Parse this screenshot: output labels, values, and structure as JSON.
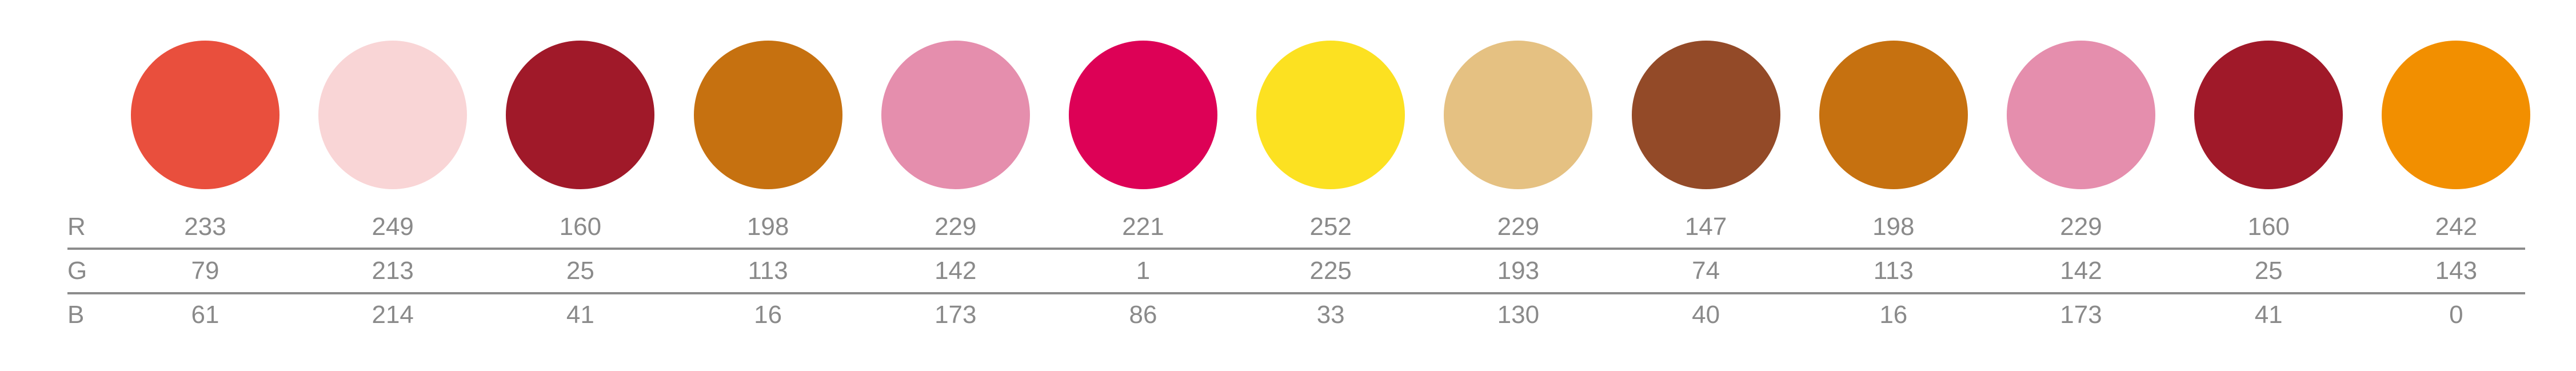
{
  "rows": {
    "r_label": "R",
    "g_label": "G",
    "b_label": "B"
  },
  "colors": [
    {
      "hex": "#e94f3d",
      "r": "233",
      "g": "79",
      "b": "61"
    },
    {
      "hex": "#f9d5d6",
      "r": "249",
      "g": "213",
      "b": "214"
    },
    {
      "hex": "#a01929",
      "r": "160",
      "g": "25",
      "b": "41"
    },
    {
      "hex": "#c67110",
      "r": "198",
      "g": "113",
      "b": "16"
    },
    {
      "hex": "#e58ead",
      "r": "229",
      "g": "142",
      "b": "173"
    },
    {
      "hex": "#dd0156",
      "r": "221",
      "g": "1",
      "b": "86"
    },
    {
      "hex": "#fce121",
      "r": "252",
      "g": "225",
      "b": "33"
    },
    {
      "hex": "#e5c182",
      "r": "229",
      "g": "193",
      "b": "130"
    },
    {
      "hex": "#934a28",
      "r": "147",
      "g": "74",
      "b": "40"
    },
    {
      "hex": "#c67110",
      "r": "198",
      "g": "113",
      "b": "16"
    },
    {
      "hex": "#e58ead",
      "r": "229",
      "g": "142",
      "b": "173"
    },
    {
      "hex": "#a01929",
      "r": "160",
      "g": "25",
      "b": "41"
    },
    {
      "hex": "#f28f00",
      "r": "242",
      "g": "143",
      "b": "0"
    }
  ]
}
